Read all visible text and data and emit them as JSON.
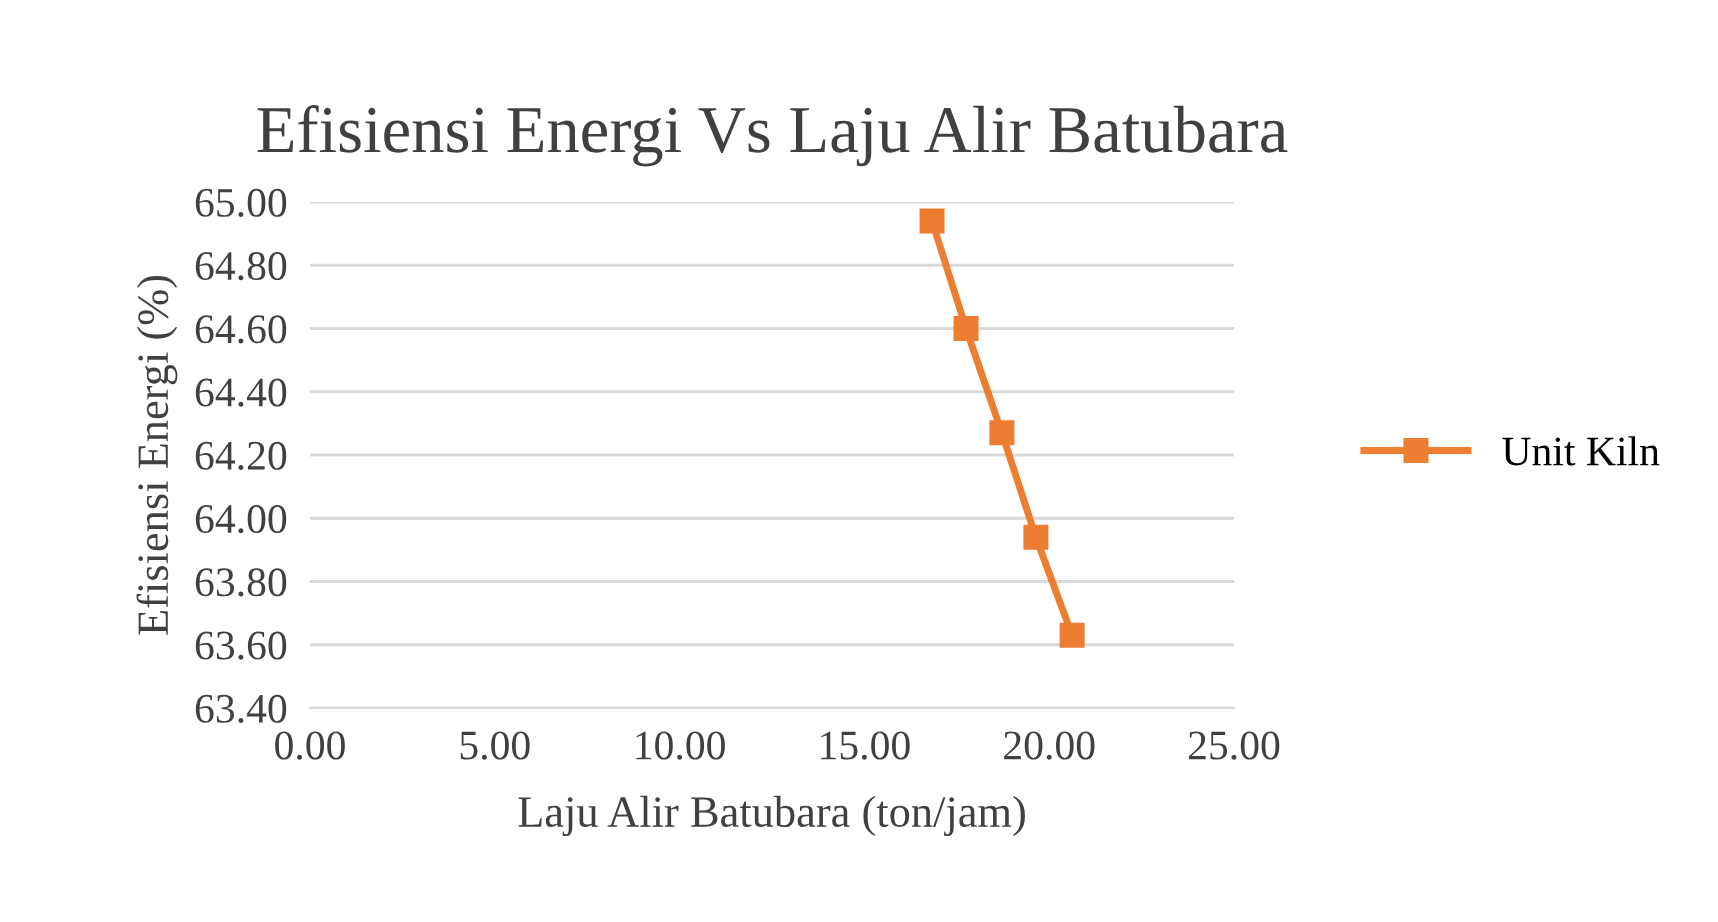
{
  "chart_data": {
    "type": "line",
    "title": "Efisiensi Energi Vs Laju Alir Batubara",
    "xlabel": "Laju Alir Batubara (ton/jam)",
    "ylabel": "Efisiensi Energi (%)",
    "x": [
      16.83,
      17.75,
      18.72,
      19.64,
      20.62
    ],
    "series": [
      {
        "name": "Unit Kiln",
        "color": "#ed7d31",
        "values": [
          64.94,
          64.6,
          64.27,
          63.94,
          63.63
        ]
      }
    ],
    "xlim": [
      0,
      25
    ],
    "xticks": [
      {
        "value": 0,
        "label": "0.00"
      },
      {
        "value": 5,
        "label": "5.00"
      },
      {
        "value": 10,
        "label": "10.00"
      },
      {
        "value": 15,
        "label": "15.00"
      },
      {
        "value": 20,
        "label": "20.00"
      },
      {
        "value": 25,
        "label": "25.00"
      }
    ],
    "ylim": [
      63.4,
      65.0
    ],
    "yticks": [
      {
        "value": 63.4,
        "label": "63.40"
      },
      {
        "value": 63.6,
        "label": "63.60"
      },
      {
        "value": 63.8,
        "label": "63.80"
      },
      {
        "value": 64.0,
        "label": "64.00"
      },
      {
        "value": 64.2,
        "label": "64.20"
      },
      {
        "value": 64.4,
        "label": "64.40"
      },
      {
        "value": 64.6,
        "label": "64.60"
      },
      {
        "value": 64.8,
        "label": "64.80"
      },
      {
        "value": 65.0,
        "label": "65.00"
      }
    ],
    "grid": "y",
    "legend": "right",
    "marker": "square",
    "line_style": "solid"
  }
}
